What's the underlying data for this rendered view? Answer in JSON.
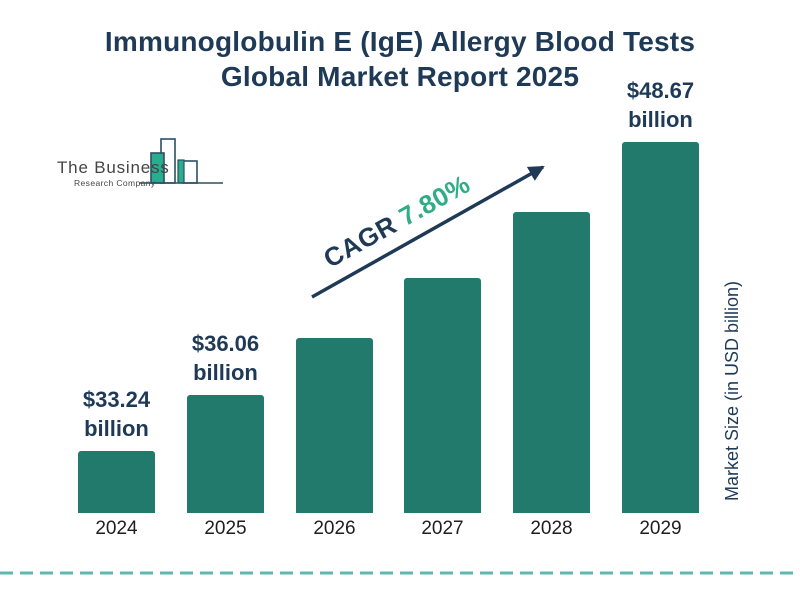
{
  "title": {
    "line1": "Immunoglobulin E (IgE) Allergy Blood Tests",
    "line2": "Global Market Report 2025"
  },
  "logo": {
    "name": "The Business",
    "subname": "Research Company"
  },
  "cagr": {
    "prefix": "CAGR ",
    "value": "7.80%"
  },
  "colors": {
    "navy": "#1f3a57",
    "bar_teal": "#217a6b",
    "cagr_green": "#2fae85",
    "dashed_line": "#5fb8ae",
    "logo_teal": "#29ad8e",
    "logo_outline": "#2d4f63"
  },
  "chart_data": {
    "type": "bar",
    "title": "Immunoglobulin E (IgE) Allergy Blood Tests Global Market Report 2025",
    "categories": [
      "2024",
      "2025",
      "2026",
      "2027",
      "2028",
      "2029"
    ],
    "values": [
      33.24,
      36.06,
      38.87,
      41.9,
      45.17,
      48.67
    ],
    "labeled_values_note": "2026-2028 estimated from CAGR 7.80%; only 2024, 2025, 2029 carry data labels",
    "bar_labels": [
      {
        "amount": "$33.24",
        "unit": "billion"
      },
      {
        "amount": "$36.06",
        "unit": "billion"
      },
      null,
      null,
      null,
      {
        "amount": "$48.67",
        "unit": "billion"
      }
    ],
    "annotation": "CAGR 7.80%",
    "xlabel": "",
    "ylabel": "Market Size (in USD billion)",
    "value_axis_visible": false,
    "grid": false,
    "legend": false,
    "bar_color": "#217a6b"
  }
}
